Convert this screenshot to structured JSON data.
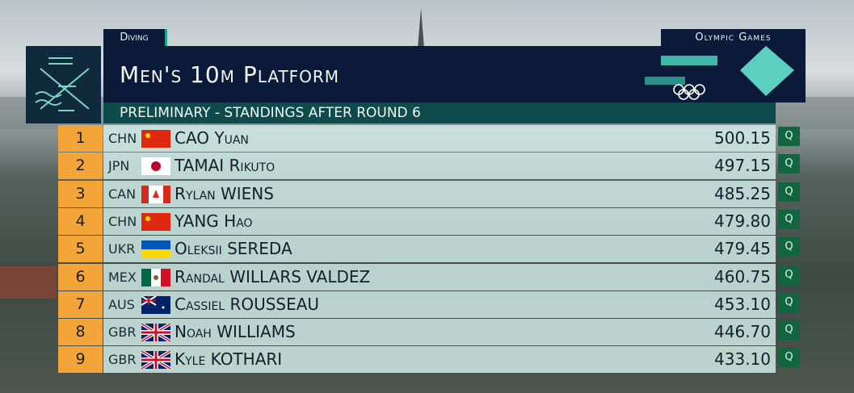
{
  "header": {
    "sport": "Diving",
    "brand": "Olympic Games",
    "title": "Men's 10m Platform",
    "subtitle": "PRELIMINARY - STANDINGS AFTER ROUND 6"
  },
  "table": {
    "rows": [
      {
        "rank": 1,
        "country": "CHN",
        "name": "CAO Yuan",
        "score": "500.15",
        "status": "Q"
      },
      {
        "rank": 2,
        "country": "JPN",
        "name": "TAMAI Rikuto",
        "score": "497.15",
        "status": "Q"
      },
      {
        "rank": 3,
        "country": "CAN",
        "name": "Rylan WIENS",
        "score": "485.25",
        "status": "Q"
      },
      {
        "rank": 4,
        "country": "CHN",
        "name": "YANG Hao",
        "score": "479.80",
        "status": "Q"
      },
      {
        "rank": 5,
        "country": "UKR",
        "name": "Oleksii SEREDA",
        "score": "479.45",
        "status": "Q"
      },
      {
        "rank": 6,
        "country": "MEX",
        "name": "Randal WILLARS VALDEZ",
        "score": "460.75",
        "status": "Q"
      },
      {
        "rank": 7,
        "country": "AUS",
        "name": "Cassiel ROUSSEAU",
        "score": "453.10",
        "status": "Q"
      },
      {
        "rank": 8,
        "country": "GBR",
        "name": "Noah WILLIAMS",
        "score": "446.70",
        "status": "Q"
      },
      {
        "rank": 9,
        "country": "GBR",
        "name": "Kyle KOTHARI",
        "score": "433.10",
        "status": "Q"
      }
    ]
  }
}
